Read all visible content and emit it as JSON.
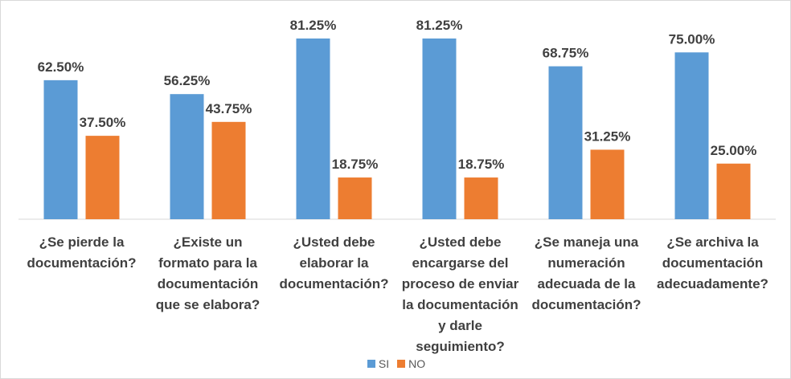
{
  "chart_data": {
    "type": "bar",
    "categories": [
      [
        "¿Se pierde la",
        "documentación?"
      ],
      [
        "¿Existe un",
        "formato para la",
        "documentación",
        "que se elabora?"
      ],
      [
        "¿Usted debe",
        "elaborar la",
        "documentación?"
      ],
      [
        "¿Usted debe",
        "encargarse del",
        "proceso de enviar",
        "la documentación",
        "y darle",
        "seguimiento?"
      ],
      [
        "¿Se maneja una",
        "numeración",
        "adecuada de la",
        "documentación?"
      ],
      [
        "¿Se archiva la",
        "documentación",
        "adecuadamente?"
      ]
    ],
    "series": [
      {
        "name": "SI",
        "color": "#5b9bd5",
        "values": [
          62.5,
          56.25,
          81.25,
          81.25,
          68.75,
          75.0
        ],
        "labels": [
          "62.50%",
          "56.25%",
          "81.25%",
          "81.25%",
          "68.75%",
          "75.00%"
        ]
      },
      {
        "name": "NO",
        "color": "#ed7d31",
        "values": [
          37.5,
          43.75,
          18.75,
          18.75,
          31.25,
          25.0
        ],
        "labels": [
          "37.50%",
          "43.75%",
          "18.75%",
          "18.75%",
          "31.25%",
          "25.00%"
        ]
      }
    ],
    "ylim": [
      0,
      100
    ],
    "grid": false,
    "legend": "bottom"
  }
}
